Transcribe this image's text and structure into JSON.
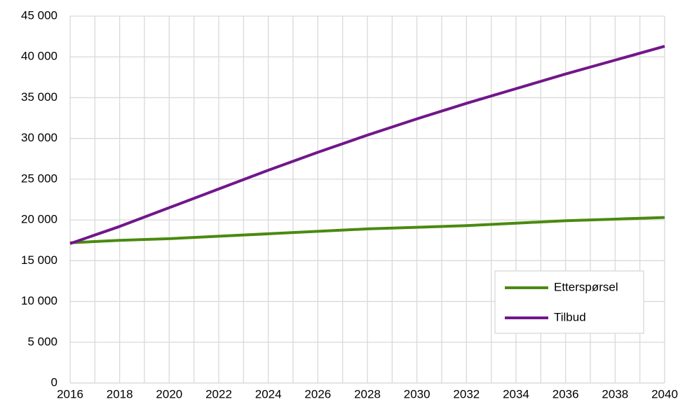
{
  "chart_data": {
    "type": "line",
    "x": [
      2016,
      2018,
      2020,
      2022,
      2024,
      2026,
      2028,
      2030,
      2032,
      2034,
      2036,
      2038,
      2040
    ],
    "series": [
      {
        "name": "Etterspørsel",
        "color": "#4a8a0f",
        "values": [
          17200,
          17500,
          17700,
          18000,
          18300,
          18600,
          18900,
          19100,
          19300,
          19600,
          19900,
          20100,
          20300
        ]
      },
      {
        "name": "Tilbud",
        "color": "#71178a",
        "values": [
          17100,
          19200,
          21500,
          23800,
          26100,
          28300,
          30400,
          32400,
          34300,
          36100,
          37900,
          39600,
          41300
        ]
      }
    ],
    "xlim": [
      2016,
      2040
    ],
    "xticks": [
      2016,
      2018,
      2020,
      2022,
      2024,
      2026,
      2028,
      2030,
      2032,
      2034,
      2036,
      2038,
      2040
    ],
    "xgrid_step": 1,
    "ylim": [
      0,
      45000
    ],
    "yticks": [
      0,
      {
        "value": 5000,
        "label": "5 000"
      },
      {
        "value": 10000,
        "label": "10 000"
      },
      {
        "value": 15000,
        "label": "15 000"
      },
      {
        "value": 20000,
        "label": "20 000"
      },
      {
        "value": 25000,
        "label": "25 000"
      },
      {
        "value": 30000,
        "label": "30 000"
      },
      {
        "value": 35000,
        "label": "35 000"
      },
      {
        "value": 40000,
        "label": "40 000"
      },
      {
        "value": 45000,
        "label": "45 000"
      }
    ],
    "grid": true,
    "legend": "lower right"
  }
}
